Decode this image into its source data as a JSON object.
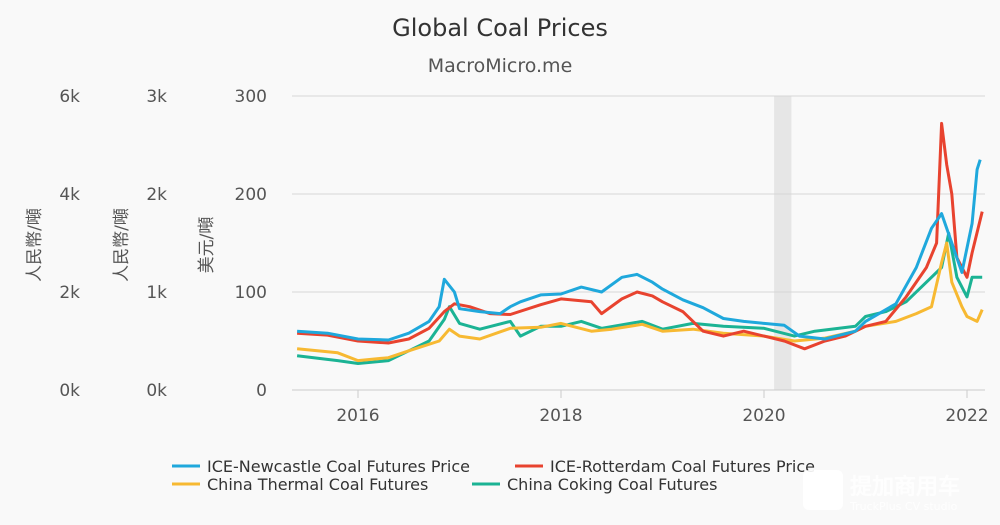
{
  "title": "Global Coal Prices",
  "subtitle": "MacroMicro.me",
  "watermark": {
    "text_cn": "提加商用车",
    "text_en": "TruckPlus CV studio"
  },
  "chart_data": {
    "type": "line",
    "title": "Global Coal Prices",
    "subtitle": "MacroMicro.me",
    "xlim": [
      2015.35,
      2022.2
    ],
    "x_ticks": [
      "2016",
      "2018",
      "2020",
      "2022"
    ],
    "shaded_range": [
      2020.1,
      2020.27
    ],
    "grid": true,
    "legend_position": "bottom",
    "axes": [
      {
        "id": "rmb1",
        "title": "人民幣/噸",
        "ticks": [
          "0k",
          "2k",
          "4k",
          "6k"
        ],
        "ylim": [
          0,
          6000
        ]
      },
      {
        "id": "rmb2",
        "title": "人民幣/噸",
        "ticks": [
          "0k",
          "1k",
          "2k",
          "3k"
        ],
        "ylim": [
          0,
          3000
        ]
      },
      {
        "id": "usd",
        "title": "美元/噸",
        "ticks": [
          "0",
          "100",
          "200",
          "300"
        ],
        "ylim": [
          0,
          300
        ]
      }
    ],
    "series": [
      {
        "name": "ICE-Newcastle Coal Futures Price",
        "color": "#1fa8dc",
        "axis": "usd",
        "x": [
          2015.4,
          2015.7,
          2016.0,
          2016.3,
          2016.5,
          2016.7,
          2016.8,
          2016.85,
          2016.95,
          2017.0,
          2017.2,
          2017.4,
          2017.5,
          2017.6,
          2017.8,
          2018.0,
          2018.2,
          2018.4,
          2018.6,
          2018.75,
          2018.9,
          2019.0,
          2019.2,
          2019.4,
          2019.6,
          2019.8,
          2020.0,
          2020.2,
          2020.35,
          2020.6,
          2020.9,
          2021.0,
          2021.3,
          2021.5,
          2021.65,
          2021.75,
          2021.85,
          2021.95,
          2022.05,
          2022.1,
          2022.13
        ],
        "y": [
          60,
          58,
          52,
          51,
          58,
          70,
          85,
          113,
          100,
          83,
          80,
          78,
          85,
          90,
          97,
          98,
          105,
          100,
          115,
          118,
          110,
          103,
          92,
          84,
          73,
          70,
          68,
          66,
          55,
          52,
          60,
          70,
          88,
          125,
          165,
          180,
          150,
          120,
          170,
          225,
          235
        ]
      },
      {
        "name": "ICE-Rotterdam Coal Futures Price",
        "color": "#e8432f",
        "axis": "usd",
        "x": [
          2015.4,
          2015.7,
          2016.0,
          2016.3,
          2016.5,
          2016.7,
          2016.85,
          2016.95,
          2017.1,
          2017.3,
          2017.5,
          2017.8,
          2018.0,
          2018.3,
          2018.4,
          2018.6,
          2018.75,
          2018.9,
          2019.0,
          2019.2,
          2019.4,
          2019.6,
          2019.8,
          2020.0,
          2020.2,
          2020.4,
          2020.6,
          2020.8,
          2021.0,
          2021.2,
          2021.4,
          2021.6,
          2021.7,
          2021.75,
          2021.8,
          2021.85,
          2021.9,
          2022.0,
          2022.05,
          2022.15
        ],
        "y": [
          58,
          56,
          50,
          48,
          52,
          63,
          80,
          88,
          85,
          78,
          77,
          87,
          93,
          90,
          78,
          93,
          100,
          96,
          90,
          80,
          60,
          55,
          60,
          55,
          50,
          42,
          50,
          55,
          65,
          70,
          95,
          125,
          150,
          272,
          230,
          200,
          135,
          115,
          140,
          182
        ]
      },
      {
        "name": "China Thermal Coal Futures",
        "color": "#f7b932",
        "axis": "rmb2",
        "x": [
          2015.4,
          2015.8,
          2016.0,
          2016.3,
          2016.5,
          2016.8,
          2016.9,
          2017.0,
          2017.2,
          2017.5,
          2017.8,
          2018.0,
          2018.3,
          2018.5,
          2018.8,
          2019.0,
          2019.3,
          2019.6,
          2020.0,
          2020.3,
          2020.6,
          2020.9,
          2021.0,
          2021.3,
          2021.5,
          2021.65,
          2021.75,
          2021.8,
          2021.85,
          2021.95,
          2022.0,
          2022.1,
          2022.15
        ],
        "y": [
          420,
          380,
          300,
          330,
          400,
          500,
          620,
          550,
          520,
          630,
          640,
          680,
          600,
          620,
          670,
          600,
          620,
          580,
          550,
          500,
          530,
          600,
          650,
          700,
          780,
          850,
          1300,
          1500,
          1100,
          850,
          750,
          700,
          820
        ]
      },
      {
        "name": "China Coking Coal Futures",
        "color": "#1bb394",
        "axis": "rmb1",
        "x": [
          2015.4,
          2015.8,
          2016.0,
          2016.3,
          2016.5,
          2016.7,
          2016.85,
          2016.9,
          2017.0,
          2017.2,
          2017.5,
          2017.6,
          2017.8,
          2018.0,
          2018.2,
          2018.4,
          2018.8,
          2019.0,
          2019.3,
          2019.6,
          2020.0,
          2020.3,
          2020.5,
          2020.9,
          2021.0,
          2021.2,
          2021.4,
          2021.6,
          2021.75,
          2021.82,
          2021.9,
          2022.0,
          2022.05,
          2022.15
        ],
        "y": [
          700,
          600,
          540,
          600,
          800,
          1000,
          1440,
          1700,
          1360,
          1240,
          1400,
          1100,
          1300,
          1300,
          1400,
          1260,
          1400,
          1240,
          1360,
          1300,
          1260,
          1100,
          1200,
          1300,
          1500,
          1600,
          1800,
          2200,
          2500,
          3200,
          2300,
          1900,
          2300,
          2300
        ]
      }
    ]
  }
}
